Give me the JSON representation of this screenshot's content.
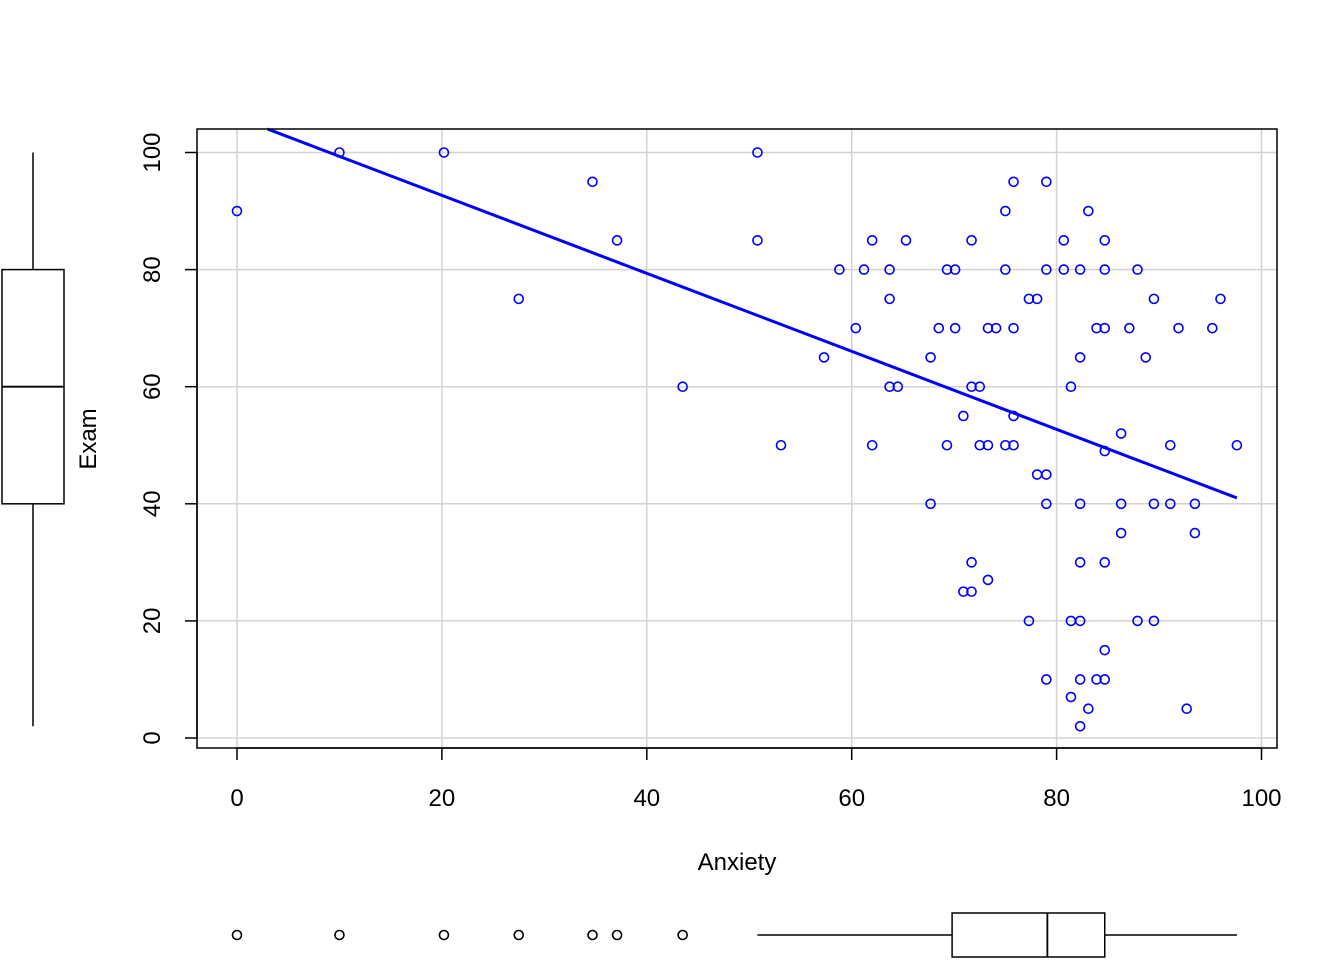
{
  "chart_data": {
    "type": "scatter",
    "title": "",
    "xlabel": "Anxiety",
    "ylabel": "Exam",
    "xlim": [
      -4,
      101
    ],
    "ylim": [
      -2,
      104
    ],
    "x_ticks": [
      0,
      20,
      40,
      60,
      80,
      100
    ],
    "y_ticks": [
      0,
      20,
      40,
      60,
      80,
      100
    ],
    "grid": true,
    "colors": {
      "points": "#0000ff",
      "fit_line": "#0000ff",
      "grid": "#d3d3d3",
      "axis": "#000000",
      "boxplot": "#000000"
    },
    "fit_line": {
      "x": [
        3,
        97.6
      ],
      "y": [
        104,
        41
      ]
    },
    "points": [
      [
        0,
        90
      ],
      [
        10,
        100
      ],
      [
        20.2,
        100
      ],
      [
        27.5,
        75
      ],
      [
        34.7,
        95
      ],
      [
        37.1,
        85
      ],
      [
        43.5,
        60
      ],
      [
        50.8,
        100
      ],
      [
        50.8,
        85
      ],
      [
        53.1,
        50
      ],
      [
        57.3,
        65
      ],
      [
        58.8,
        80
      ],
      [
        60.4,
        70
      ],
      [
        61.2,
        80
      ],
      [
        62,
        85
      ],
      [
        62,
        50
      ],
      [
        63.7,
        80
      ],
      [
        63.7,
        75
      ],
      [
        63.7,
        60
      ],
      [
        64.5,
        60
      ],
      [
        65.3,
        85
      ],
      [
        67.7,
        65
      ],
      [
        67.7,
        40
      ],
      [
        68.5,
        70
      ],
      [
        69.3,
        80
      ],
      [
        69.3,
        50
      ],
      [
        70.1,
        80
      ],
      [
        70.1,
        70
      ],
      [
        70.9,
        55
      ],
      [
        70.9,
        25
      ],
      [
        71.7,
        85
      ],
      [
        71.7,
        60
      ],
      [
        71.7,
        30
      ],
      [
        71.7,
        25
      ],
      [
        72.5,
        60
      ],
      [
        72.5,
        50
      ],
      [
        73.3,
        70
      ],
      [
        73.3,
        50
      ],
      [
        73.3,
        27
      ],
      [
        74.1,
        70
      ],
      [
        75,
        90
      ],
      [
        75,
        80
      ],
      [
        75,
        50
      ],
      [
        75.8,
        95
      ],
      [
        75.8,
        70
      ],
      [
        75.8,
        55
      ],
      [
        75.8,
        50
      ],
      [
        77.3,
        75
      ],
      [
        77.3,
        20
      ],
      [
        78.1,
        75
      ],
      [
        78.1,
        45
      ],
      [
        79,
        95
      ],
      [
        79,
        80
      ],
      [
        79,
        45
      ],
      [
        79,
        40
      ],
      [
        79,
        10
      ],
      [
        80.7,
        85
      ],
      [
        80.7,
        80
      ],
      [
        81.4,
        60
      ],
      [
        81.4,
        20
      ],
      [
        81.4,
        7
      ],
      [
        82.3,
        80
      ],
      [
        82.3,
        65
      ],
      [
        82.3,
        40
      ],
      [
        82.3,
        30
      ],
      [
        82.3,
        20
      ],
      [
        82.3,
        10
      ],
      [
        82.3,
        2
      ],
      [
        83.1,
        90
      ],
      [
        83.1,
        5
      ],
      [
        83.9,
        70
      ],
      [
        83.9,
        10
      ],
      [
        84.7,
        85
      ],
      [
        84.7,
        80
      ],
      [
        84.7,
        70
      ],
      [
        84.7,
        49
      ],
      [
        84.7,
        30
      ],
      [
        84.7,
        15
      ],
      [
        84.7,
        10
      ],
      [
        86.3,
        52
      ],
      [
        86.3,
        40
      ],
      [
        86.3,
        35
      ],
      [
        87.1,
        70
      ],
      [
        87.9,
        80
      ],
      [
        87.9,
        20
      ],
      [
        88.7,
        65
      ],
      [
        89.5,
        75
      ],
      [
        89.5,
        40
      ],
      [
        89.5,
        20
      ],
      [
        91.1,
        50
      ],
      [
        91.1,
        40
      ],
      [
        91.9,
        70
      ],
      [
        92.7,
        5
      ],
      [
        93.5,
        40
      ],
      [
        93.5,
        35
      ],
      [
        95.2,
        70
      ],
      [
        96,
        75
      ],
      [
        97.6,
        50
      ]
    ],
    "boxplot_exam": {
      "whisker_low": 2,
      "q1": 40,
      "median": 60,
      "q3": 80,
      "whisker_high": 100
    },
    "boxplot_anxiety": {
      "whisker_low": 50.8,
      "q1": 69.8,
      "median": 79.1,
      "q3": 84.7,
      "whisker_high": 97.6,
      "outliers": [
        0,
        10,
        20.2,
        27.5,
        34.7,
        37.1,
        43.5
      ]
    }
  }
}
